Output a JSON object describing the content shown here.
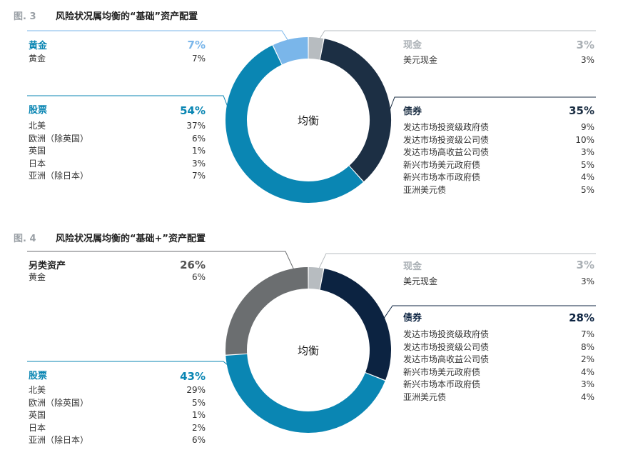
{
  "figures": [
    {
      "label": "图. 3",
      "title": "风险状况属均衡的“基础”资产配置",
      "center": "均衡",
      "segments": [
        {
          "name": "现金",
          "value": 3,
          "color": "#b7bcc0"
        },
        {
          "name": "债券",
          "value": 35,
          "color": "#1c2f44"
        },
        {
          "name": "股票",
          "value": 54,
          "color": "#0a86b3"
        },
        {
          "name": "黄金",
          "value": 7,
          "color": "#7ab6ea"
        }
      ],
      "groups": {
        "gold": {
          "name": "黄金",
          "pct": "7%",
          "items": [
            {
              "label": "黄金",
              "value": "7%"
            }
          ]
        },
        "equity": {
          "name": "股票",
          "pct": "54%",
          "items": [
            {
              "label": "北美",
              "value": "37%"
            },
            {
              "label": "欧洲（除英国）",
              "value": "6%"
            },
            {
              "label": "英国",
              "value": "1%"
            },
            {
              "label": "日本",
              "value": "3%"
            },
            {
              "label": "亚洲（除日本）",
              "value": "7%"
            }
          ]
        },
        "cash": {
          "name": "现金",
          "pct": "3%",
          "items": [
            {
              "label": "美元现金",
              "value": "3%"
            }
          ]
        },
        "bonds": {
          "name": "债券",
          "pct": "35%",
          "items": [
            {
              "label": "发达市场投资级政府债",
              "value": "9%"
            },
            {
              "label": "发达市场投资级公司债",
              "value": "10%"
            },
            {
              "label": "发达市场高收益公司债",
              "value": "3%"
            },
            {
              "label": "新兴市场美元政府债",
              "value": "5%"
            },
            {
              "label": "新兴市场本币政府债",
              "value": "4%"
            },
            {
              "label": "亚洲美元债",
              "value": "5%"
            }
          ]
        }
      }
    },
    {
      "label": "图. 4",
      "title": "风险状况属均衡的“基础+”资产配置",
      "center": "均衡",
      "segments": [
        {
          "name": "现金",
          "value": 3,
          "color": "#b7bcc0"
        },
        {
          "name": "债券",
          "value": 28,
          "color": "#0c2341"
        },
        {
          "name": "股票",
          "value": 43,
          "color": "#0a86b3"
        },
        {
          "name": "另类资产",
          "value": 26,
          "color": "#6b6e70"
        }
      ],
      "groups": {
        "alts": {
          "name": "另类资产",
          "pct": "26%",
          "items": [
            {
              "label": "黄金",
              "value": "6%"
            }
          ]
        },
        "equity": {
          "name": "股票",
          "pct": "43%",
          "items": [
            {
              "label": "北美",
              "value": "29%"
            },
            {
              "label": "欧洲（除英国）",
              "value": "5%"
            },
            {
              "label": "英国",
              "value": "1%"
            },
            {
              "label": "日本",
              "value": "2%"
            },
            {
              "label": "亚洲（除日本）",
              "value": "6%"
            }
          ]
        },
        "cash": {
          "name": "现金",
          "pct": "3%",
          "items": [
            {
              "label": "美元现金",
              "value": "3%"
            }
          ]
        },
        "bonds": {
          "name": "债券",
          "pct": "28%",
          "items": [
            {
              "label": "发达市场投资级政府债",
              "value": "7%"
            },
            {
              "label": "发达市场投资级公司债",
              "value": "8%"
            },
            {
              "label": "发达市场高收益公司债",
              "value": "2%"
            },
            {
              "label": "新兴市场美元政府债",
              "value": "4%"
            },
            {
              "label": "新兴市场本币政府债",
              "value": "3%"
            },
            {
              "label": "亚洲美元债",
              "value": "4%"
            }
          ]
        }
      }
    }
  ],
  "chart_data": [
    {
      "type": "pie",
      "title": "风险状况属均衡的“基础”资产配置",
      "categories": [
        "现金",
        "债券",
        "股票",
        "黄金"
      ],
      "values": [
        3,
        35,
        54,
        7
      ]
    },
    {
      "type": "pie",
      "title": "风险状况属均衡的“基础+”资产配置",
      "categories": [
        "现金",
        "债券",
        "股票",
        "另类资产"
      ],
      "values": [
        3,
        28,
        43,
        26
      ]
    }
  ]
}
